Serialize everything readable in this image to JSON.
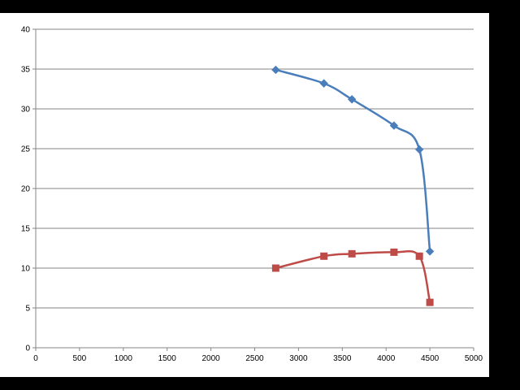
{
  "chart_data": {
    "type": "scatter",
    "title": "",
    "xlabel": "",
    "ylabel": "",
    "xlim": [
      0,
      5000
    ],
    "ylim": [
      0,
      40
    ],
    "x_ticks": [
      "0",
      "500",
      "1000",
      "1500",
      "2000",
      "2500",
      "3000",
      "3500",
      "4000",
      "4500",
      "5000"
    ],
    "y_ticks": [
      "0",
      "5",
      "10",
      "15",
      "20",
      "25",
      "30",
      "35",
      "40"
    ],
    "grid": "horizontal",
    "legend": "none",
    "smooth": true,
    "series": [
      {
        "color": "#4a7ebb",
        "marker": "diamond",
        "points": [
          [
            2740,
            34.9
          ],
          [
            3290,
            33.2
          ],
          [
            3610,
            31.2
          ],
          [
            4090,
            27.9
          ],
          [
            4380,
            24.9
          ],
          [
            4500,
            12.1
          ]
        ]
      },
      {
        "color": "#be4b48",
        "marker": "square",
        "points": [
          [
            2740,
            10.0
          ],
          [
            3290,
            11.5
          ],
          [
            3610,
            11.8
          ],
          [
            4090,
            12.0
          ],
          [
            4380,
            11.5
          ],
          [
            4500,
            5.7
          ]
        ]
      }
    ]
  }
}
